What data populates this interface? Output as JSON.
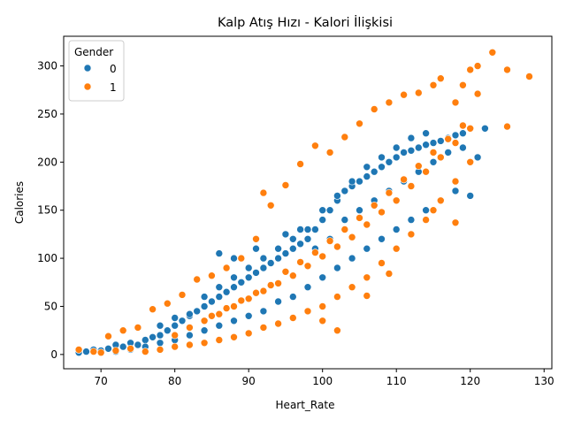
{
  "chart_data": {
    "type": "scatter",
    "title": "Kalp Atış Hızı - Kalori İlişkisi",
    "xlabel": "Heart_Rate",
    "ylabel": "Calories",
    "xlim": [
      64.95,
      131.05
    ],
    "ylim": [
      -14.85,
      330.85
    ],
    "xticks": [
      70,
      80,
      90,
      100,
      110,
      120,
      130
    ],
    "yticks": [
      0,
      50,
      100,
      150,
      200,
      250,
      300
    ],
    "grid": false,
    "legend": {
      "title": "Gender",
      "position": "top-left"
    },
    "series": [
      {
        "name": "0",
        "color": "#1f77b4",
        "points": [
          [
            67,
            2
          ],
          [
            68,
            3
          ],
          [
            69,
            5
          ],
          [
            70,
            4
          ],
          [
            71,
            6
          ],
          [
            72,
            3
          ],
          [
            73,
            8
          ],
          [
            74,
            12
          ],
          [
            75,
            10
          ],
          [
            76,
            15
          ],
          [
            77,
            18
          ],
          [
            78,
            20
          ],
          [
            79,
            25
          ],
          [
            80,
            30
          ],
          [
            81,
            35
          ],
          [
            82,
            40
          ],
          [
            83,
            45
          ],
          [
            84,
            50
          ],
          [
            85,
            55
          ],
          [
            86,
            60
          ],
          [
            87,
            65
          ],
          [
            88,
            70
          ],
          [
            89,
            75
          ],
          [
            90,
            80
          ],
          [
            91,
            85
          ],
          [
            92,
            90
          ],
          [
            93,
            95
          ],
          [
            94,
            100
          ],
          [
            95,
            105
          ],
          [
            96,
            110
          ],
          [
            97,
            115
          ],
          [
            98,
            120
          ],
          [
            99,
            130
          ],
          [
            100,
            140
          ],
          [
            101,
            150
          ],
          [
            102,
            160
          ],
          [
            103,
            170
          ],
          [
            104,
            175
          ],
          [
            105,
            180
          ],
          [
            106,
            185
          ],
          [
            107,
            190
          ],
          [
            108,
            195
          ],
          [
            109,
            200
          ],
          [
            110,
            205
          ],
          [
            111,
            210
          ],
          [
            112,
            212
          ],
          [
            113,
            215
          ],
          [
            114,
            218
          ],
          [
            115,
            220
          ],
          [
            116,
            222
          ],
          [
            117,
            225
          ],
          [
            118,
            228
          ],
          [
            119,
            230
          ],
          [
            120,
            165
          ],
          [
            121,
            205
          ],
          [
            122,
            235
          ],
          [
            72,
            10
          ],
          [
            74,
            5
          ],
          [
            76,
            8
          ],
          [
            78,
            12
          ],
          [
            80,
            15
          ],
          [
            82,
            20
          ],
          [
            84,
            25
          ],
          [
            86,
            30
          ],
          [
            88,
            35
          ],
          [
            90,
            40
          ],
          [
            92,
            45
          ],
          [
            94,
            55
          ],
          [
            96,
            60
          ],
          [
            98,
            70
          ],
          [
            100,
            80
          ],
          [
            102,
            90
          ],
          [
            104,
            100
          ],
          [
            106,
            110
          ],
          [
            108,
            120
          ],
          [
            110,
            130
          ],
          [
            112,
            140
          ],
          [
            114,
            150
          ],
          [
            116,
            160
          ],
          [
            118,
            170
          ],
          [
            86,
            105
          ],
          [
            88,
            100
          ],
          [
            91,
            110
          ],
          [
            95,
            125
          ],
          [
            97,
            130
          ],
          [
            99,
            110
          ],
          [
            101,
            120
          ],
          [
            103,
            140
          ],
          [
            105,
            150
          ],
          [
            107,
            160
          ],
          [
            109,
            170
          ],
          [
            111,
            180
          ],
          [
            113,
            190
          ],
          [
            115,
            200
          ],
          [
            117,
            210
          ],
          [
            119,
            215
          ],
          [
            78,
            30
          ],
          [
            80,
            38
          ],
          [
            82,
            42
          ],
          [
            84,
            60
          ],
          [
            86,
            70
          ],
          [
            88,
            80
          ],
          [
            90,
            90
          ],
          [
            92,
            100
          ],
          [
            94,
            110
          ],
          [
            96,
            120
          ],
          [
            98,
            130
          ],
          [
            100,
            150
          ],
          [
            102,
            165
          ],
          [
            104,
            180
          ],
          [
            106,
            195
          ],
          [
            108,
            205
          ],
          [
            110,
            215
          ],
          [
            112,
            225
          ],
          [
            114,
            230
          ]
        ]
      },
      {
        "name": "1",
        "color": "#ff7f0e",
        "points": [
          [
            67,
            5
          ],
          [
            69,
            3
          ],
          [
            71,
            19
          ],
          [
            73,
            25
          ],
          [
            75,
            28
          ],
          [
            77,
            47
          ],
          [
            79,
            53
          ],
          [
            81,
            62
          ],
          [
            83,
            78
          ],
          [
            85,
            82
          ],
          [
            87,
            90
          ],
          [
            89,
            100
          ],
          [
            91,
            120
          ],
          [
            92,
            168
          ],
          [
            93,
            155
          ],
          [
            95,
            176
          ],
          [
            97,
            198
          ],
          [
            99,
            217
          ],
          [
            101,
            210
          ],
          [
            103,
            226
          ],
          [
            105,
            240
          ],
          [
            107,
            255
          ],
          [
            109,
            262
          ],
          [
            111,
            270
          ],
          [
            113,
            272
          ],
          [
            115,
            280
          ],
          [
            116,
            287
          ],
          [
            118,
            262
          ],
          [
            119,
            280
          ],
          [
            120,
            296
          ],
          [
            121,
            300
          ],
          [
            121,
            271
          ],
          [
            123,
            314
          ],
          [
            125,
            237
          ],
          [
            125,
            296
          ],
          [
            128,
            289
          ],
          [
            118,
            137
          ],
          [
            115,
            150
          ],
          [
            109,
            84
          ],
          [
            106,
            61
          ],
          [
            102,
            25
          ],
          [
            100,
            35
          ],
          [
            70,
            2
          ],
          [
            72,
            4
          ],
          [
            74,
            6
          ],
          [
            76,
            3
          ],
          [
            78,
            5
          ],
          [
            80,
            8
          ],
          [
            82,
            10
          ],
          [
            84,
            12
          ],
          [
            86,
            15
          ],
          [
            88,
            18
          ],
          [
            90,
            22
          ],
          [
            92,
            28
          ],
          [
            94,
            32
          ],
          [
            96,
            38
          ],
          [
            98,
            45
          ],
          [
            100,
            50
          ],
          [
            102,
            60
          ],
          [
            104,
            70
          ],
          [
            106,
            80
          ],
          [
            108,
            95
          ],
          [
            110,
            110
          ],
          [
            112,
            125
          ],
          [
            114,
            140
          ],
          [
            116,
            160
          ],
          [
            118,
            180
          ],
          [
            120,
            200
          ],
          [
            80,
            20
          ],
          [
            82,
            28
          ],
          [
            84,
            35
          ],
          [
            86,
            42
          ],
          [
            88,
            50
          ],
          [
            90,
            58
          ],
          [
            92,
            66
          ],
          [
            94,
            74
          ],
          [
            96,
            82
          ],
          [
            98,
            92
          ],
          [
            100,
            102
          ],
          [
            102,
            112
          ],
          [
            104,
            122
          ],
          [
            106,
            135
          ],
          [
            108,
            148
          ],
          [
            110,
            160
          ],
          [
            112,
            175
          ],
          [
            114,
            190
          ],
          [
            116,
            205
          ],
          [
            118,
            220
          ],
          [
            120,
            235
          ],
          [
            85,
            40
          ],
          [
            87,
            48
          ],
          [
            89,
            56
          ],
          [
            91,
            64
          ],
          [
            93,
            72
          ],
          [
            95,
            86
          ],
          [
            97,
            96
          ],
          [
            99,
            106
          ],
          [
            101,
            118
          ],
          [
            103,
            130
          ],
          [
            105,
            142
          ],
          [
            107,
            155
          ],
          [
            109,
            168
          ],
          [
            111,
            182
          ],
          [
            113,
            196
          ],
          [
            115,
            210
          ],
          [
            117,
            224
          ],
          [
            119,
            238
          ]
        ]
      }
    ]
  }
}
